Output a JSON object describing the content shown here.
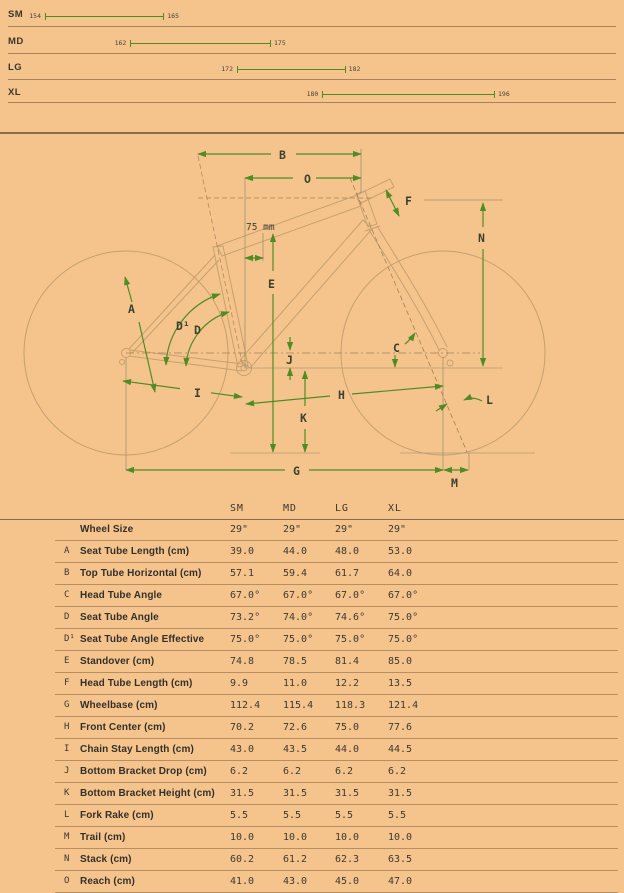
{
  "size_chart": {
    "rows": [
      {
        "label": "SM",
        "range_min": "154",
        "range_max": "165"
      },
      {
        "label": "MD",
        "range_min": "162",
        "range_max": "175"
      },
      {
        "label": "LG",
        "range_min": "172",
        "range_max": "182"
      },
      {
        "label": "XL",
        "range_min": "180",
        "range_max": "196"
      }
    ]
  },
  "diagram": {
    "seatpost_offset_note": "75 mm",
    "labels": {
      "B": "B",
      "O": "O",
      "F": "F",
      "N": "N",
      "E": "E",
      "A": "A",
      "D1": "D¹",
      "D": "D",
      "J": "J",
      "C": "C",
      "I": "I",
      "H": "H",
      "K": "K",
      "L": "L",
      "G": "G",
      "M": "M"
    }
  },
  "table": {
    "columns": [
      "SM",
      "MD",
      "LG",
      "XL"
    ],
    "rows": [
      {
        "letter": "",
        "label": "Wheel Size",
        "values": [
          "29\"",
          "29\"",
          "29\"",
          "29\""
        ]
      },
      {
        "letter": "A",
        "label": "Seat Tube Length (cm)",
        "values": [
          "39.0",
          "44.0",
          "48.0",
          "53.0"
        ]
      },
      {
        "letter": "B",
        "label": "Top Tube Horizontal (cm)",
        "values": [
          "57.1",
          "59.4",
          "61.7",
          "64.0"
        ]
      },
      {
        "letter": "C",
        "label": "Head Tube Angle",
        "values": [
          "67.0°",
          "67.0°",
          "67.0°",
          "67.0°"
        ]
      },
      {
        "letter": "D",
        "label": "Seat Tube Angle",
        "values": [
          "73.2°",
          "74.0°",
          "74.6°",
          "75.0°"
        ]
      },
      {
        "letter": "D¹",
        "label": "Seat Tube Angle Effective",
        "values": [
          "75.0°",
          "75.0°",
          "75.0°",
          "75.0°"
        ]
      },
      {
        "letter": "E",
        "label": "Standover (cm)",
        "values": [
          "74.8",
          "78.5",
          "81.4",
          "85.0"
        ]
      },
      {
        "letter": "F",
        "label": "Head Tube Length (cm)",
        "values": [
          "9.9",
          "11.0",
          "12.2",
          "13.5"
        ]
      },
      {
        "letter": "G",
        "label": "Wheelbase (cm)",
        "values": [
          "112.4",
          "115.4",
          "118.3",
          "121.4"
        ]
      },
      {
        "letter": "H",
        "label": "Front Center (cm)",
        "values": [
          "70.2",
          "72.6",
          "75.0",
          "77.6"
        ]
      },
      {
        "letter": "I",
        "label": "Chain Stay Length (cm)",
        "values": [
          "43.0",
          "43.5",
          "44.0",
          "44.5"
        ]
      },
      {
        "letter": "J",
        "label": "Bottom Bracket Drop (cm)",
        "values": [
          "6.2",
          "6.2",
          "6.2",
          "6.2"
        ]
      },
      {
        "letter": "K",
        "label": "Bottom Bracket Height (cm)",
        "values": [
          "31.5",
          "31.5",
          "31.5",
          "31.5"
        ]
      },
      {
        "letter": "L",
        "label": "Fork Rake (cm)",
        "values": [
          "5.5",
          "5.5",
          "5.5",
          "5.5"
        ]
      },
      {
        "letter": "M",
        "label": "Trail (cm)",
        "values": [
          "10.0",
          "10.0",
          "10.0",
          "10.0"
        ]
      },
      {
        "letter": "N",
        "label": "Stack (cm)",
        "values": [
          "60.2",
          "61.2",
          "62.3",
          "63.5"
        ]
      },
      {
        "letter": "O",
        "label": "Reach (cm)",
        "values": [
          "41.0",
          "43.0",
          "45.0",
          "47.0"
        ]
      }
    ]
  },
  "colors": {
    "background": "#f5c48d",
    "accent_green": "#4f8c26",
    "frame_line": "#c7a06f",
    "rule_brown": "#a5805a",
    "text_dark": "#3a352d"
  }
}
